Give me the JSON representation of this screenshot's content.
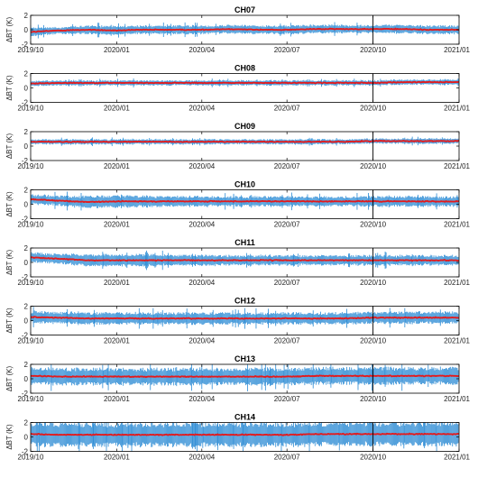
{
  "chart_data": {
    "type": "scatter",
    "ylabel": "ΔBT (K)",
    "yticks": [
      -2,
      0,
      2
    ],
    "ylim": [
      -2,
      2
    ],
    "xlim": [
      "2019/10/01",
      "2021/01/01"
    ],
    "xticks": [
      "2019/10",
      "2020/01",
      "2020/04",
      "2020/07",
      "2020/10",
      "2021/01"
    ],
    "vline_date": "2020/10/01",
    "colors": {
      "mean": "#e41a1c",
      "errorbar": "#2a8ad4",
      "vline": "#000000",
      "axes": "#000000"
    },
    "panels": [
      {
        "title": "CH07",
        "mean": [
          -0.3,
          -0.1,
          0.0,
          -0.1,
          0.0,
          0.0,
          0.0,
          0.1,
          0.0,
          0.0,
          0.1,
          0.1,
          0.1,
          0.1,
          0.0,
          0.0
        ],
        "spread": [
          0.5,
          0.4,
          0.5,
          0.5,
          0.5,
          0.5,
          0.5,
          0.5,
          0.5,
          0.5,
          0.5,
          0.5,
          0.5,
          0.5,
          0.5,
          0.5
        ]
      },
      {
        "title": "CH08",
        "mean": [
          0.6,
          0.7,
          0.7,
          0.7,
          0.7,
          0.7,
          0.7,
          0.7,
          0.7,
          0.7,
          0.7,
          0.7,
          0.7,
          0.8,
          0.8,
          0.8
        ],
        "spread": [
          0.3,
          0.3,
          0.3,
          0.3,
          0.3,
          0.3,
          0.3,
          0.3,
          0.3,
          0.3,
          0.3,
          0.3,
          0.3,
          0.3,
          0.3,
          0.3
        ]
      },
      {
        "title": "CH09",
        "mean": [
          0.6,
          0.6,
          0.6,
          0.6,
          0.6,
          0.6,
          0.6,
          0.6,
          0.6,
          0.6,
          0.6,
          0.6,
          0.7,
          0.7,
          0.7,
          0.7
        ],
        "spread": [
          0.3,
          0.3,
          0.3,
          0.3,
          0.3,
          0.3,
          0.3,
          0.3,
          0.3,
          0.3,
          0.3,
          0.3,
          0.3,
          0.3,
          0.3,
          0.3
        ]
      },
      {
        "title": "CH10",
        "mean": [
          0.7,
          0.5,
          0.3,
          0.4,
          0.4,
          0.4,
          0.4,
          0.4,
          0.4,
          0.4,
          0.4,
          0.4,
          0.4,
          0.4,
          0.4,
          0.4
        ],
        "spread": [
          0.6,
          0.6,
          0.7,
          0.7,
          0.7,
          0.6,
          0.6,
          0.6,
          0.6,
          0.6,
          0.6,
          0.6,
          0.6,
          0.6,
          0.6,
          0.6
        ]
      },
      {
        "title": "CH11",
        "mean": [
          0.7,
          0.5,
          0.3,
          0.3,
          0.3,
          0.3,
          0.3,
          0.3,
          0.3,
          0.3,
          0.3,
          0.3,
          0.3,
          0.3,
          0.3,
          0.3
        ],
        "spread": [
          0.6,
          0.6,
          0.7,
          0.7,
          0.7,
          0.6,
          0.6,
          0.6,
          0.6,
          0.6,
          0.6,
          0.6,
          0.6,
          0.6,
          0.6,
          0.6
        ]
      },
      {
        "title": "CH12",
        "mean": [
          0.5,
          0.4,
          0.3,
          0.3,
          0.3,
          0.3,
          0.3,
          0.3,
          0.3,
          0.3,
          0.3,
          0.3,
          0.4,
          0.4,
          0.4,
          0.4
        ],
        "spread": [
          0.7,
          0.7,
          0.7,
          0.7,
          0.7,
          0.7,
          0.7,
          0.7,
          0.7,
          0.7,
          0.7,
          0.7,
          0.7,
          0.7,
          0.7,
          0.7
        ]
      },
      {
        "title": "CH13",
        "mean": [
          0.4,
          0.3,
          0.3,
          0.3,
          0.3,
          0.3,
          0.3,
          0.3,
          0.3,
          0.3,
          0.4,
          0.4,
          0.4,
          0.4,
          0.4,
          0.4
        ],
        "spread": [
          1.0,
          1.0,
          1.0,
          1.0,
          1.0,
          1.0,
          1.0,
          1.0,
          1.0,
          1.0,
          1.0,
          1.0,
          1.0,
          1.0,
          1.0,
          1.0
        ]
      },
      {
        "title": "CH14",
        "mean": [
          0.4,
          0.3,
          0.3,
          0.3,
          0.3,
          0.3,
          0.3,
          0.3,
          0.3,
          0.3,
          0.4,
          0.4,
          0.4,
          0.4,
          0.4,
          0.4
        ],
        "spread": [
          1.4,
          1.4,
          1.4,
          1.4,
          1.4,
          1.4,
          1.4,
          1.4,
          1.4,
          1.4,
          1.4,
          1.4,
          1.4,
          1.4,
          1.4,
          1.4
        ]
      }
    ]
  }
}
